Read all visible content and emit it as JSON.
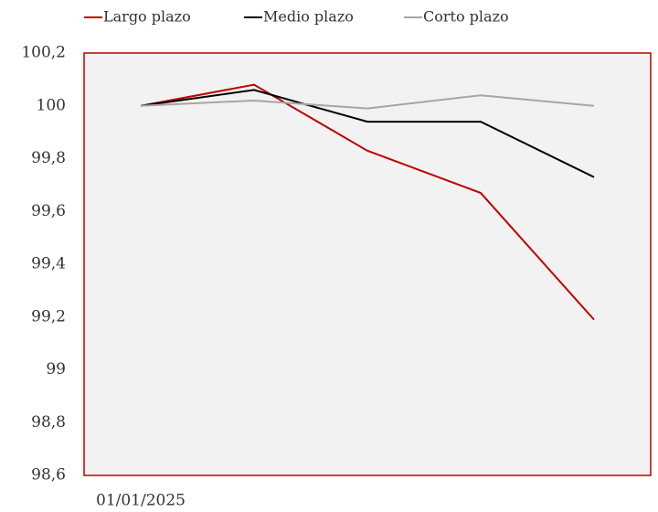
{
  "chart_data": {
    "type": "line",
    "categories": [
      "01/01/2025",
      null,
      null,
      null,
      null
    ],
    "series": [
      {
        "name": "Largo plazo",
        "color": "#c00000",
        "values": [
          100,
          100.08,
          99.83,
          99.67,
          99.19
        ]
      },
      {
        "name": "Medio plazo",
        "color": "#000000",
        "values": [
          100,
          100.06,
          99.94,
          99.94,
          99.73
        ]
      },
      {
        "name": "Corto plazo",
        "color": "#a6a6a6",
        "values": [
          100,
          100.02,
          99.99,
          100.04,
          100
        ]
      }
    ],
    "ylim": [
      98.6,
      100.2
    ],
    "yticks": [
      {
        "value": 98.6,
        "label": "98,6"
      },
      {
        "value": 98.8,
        "label": "98,8"
      },
      99,
      {
        "value": 99.2,
        "label": "99,2"
      },
      {
        "value": 99.4,
        "label": "99,4"
      },
      {
        "value": 99.6,
        "label": "99,6"
      },
      {
        "value": 99.8,
        "label": "99,8"
      },
      100,
      {
        "value": 100.2,
        "label": "100,2"
      }
    ],
    "grid": false,
    "legend": "top"
  }
}
